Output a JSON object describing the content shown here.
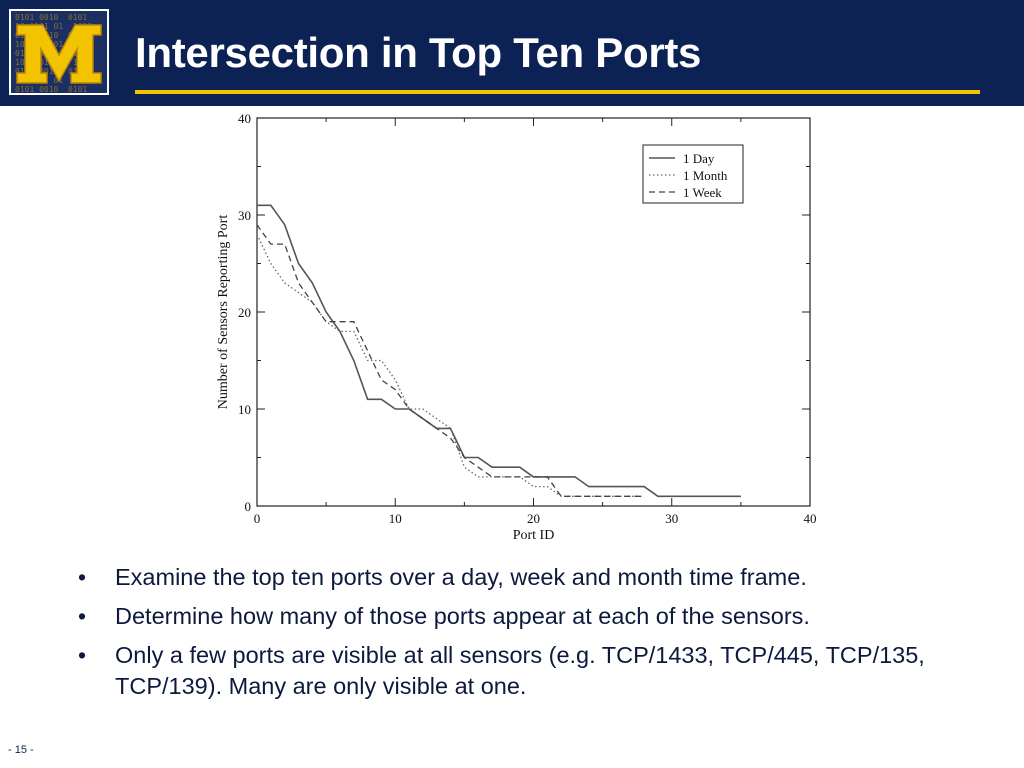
{
  "slide": {
    "title": "Intersection in Top Ten Ports",
    "page_number": "- 15 -",
    "colors": {
      "header_bg": "#0d2254",
      "accent_rule": "#f2c300",
      "logo_gold": "#f2c300"
    },
    "logo_letter": "M",
    "bullets": [
      "Examine the top ten ports over a day, week and month time frame.",
      "Determine how many of those ports appear at each of the sensors.",
      "Only a few ports are visible at all sensors (e.g. TCP/1433, TCP/445, TCP/135, TCP/139). Many are only visible at one."
    ]
  },
  "chart_data": {
    "type": "line",
    "xlabel": "Port ID",
    "ylabel": "Number of Sensors Reporting Port",
    "xlim": [
      0,
      40
    ],
    "ylim": [
      0,
      40
    ],
    "xticks": [
      0,
      10,
      20,
      30,
      40
    ],
    "yticks": [
      0,
      10,
      20,
      30,
      40
    ],
    "grid": false,
    "legend_position": "top-right",
    "series": [
      {
        "name": "1 Day",
        "style": "solid",
        "x": [
          0,
          1,
          2,
          3,
          4,
          5,
          6,
          7,
          8,
          9,
          10,
          11,
          12,
          13,
          14,
          15,
          16,
          17,
          18,
          19,
          20,
          21,
          22,
          23,
          24,
          25,
          26,
          27,
          28,
          29,
          30,
          31,
          32,
          33,
          34,
          35
        ],
        "y": [
          31,
          31,
          29,
          25,
          23,
          20,
          18,
          15,
          11,
          11,
          10,
          10,
          9,
          8,
          8,
          5,
          5,
          4,
          4,
          4,
          3,
          3,
          3,
          3,
          2,
          2,
          2,
          2,
          2,
          1,
          1,
          1,
          1,
          1,
          1,
          1
        ]
      },
      {
        "name": "1 Month",
        "style": "dotted",
        "x": [
          0,
          1,
          2,
          3,
          4,
          5,
          6,
          7,
          8,
          9,
          10,
          11,
          12,
          13,
          14,
          15,
          16,
          17,
          18,
          19,
          20,
          21,
          22,
          23,
          24,
          25,
          26,
          27,
          28
        ],
        "y": [
          28,
          25,
          23,
          22,
          21,
          19,
          18,
          18,
          15,
          15,
          13,
          10,
          10,
          9,
          8,
          4,
          3,
          3,
          3,
          3,
          2,
          2,
          1,
          1,
          1,
          1,
          1,
          1,
          1
        ]
      },
      {
        "name": "1 Week",
        "style": "dashed",
        "x": [
          0,
          1,
          2,
          3,
          4,
          5,
          6,
          7,
          8,
          9,
          10,
          11,
          12,
          13,
          14,
          15,
          16,
          17,
          18,
          19,
          20,
          21,
          22,
          23,
          24,
          25,
          26,
          27,
          28
        ],
        "y": [
          29,
          27,
          27,
          23,
          21,
          19,
          19,
          19,
          16,
          13,
          12,
          10,
          9,
          8,
          7,
          5,
          4,
          3,
          3,
          3,
          3,
          3,
          1,
          1,
          1,
          1,
          1,
          1,
          1
        ]
      }
    ]
  }
}
